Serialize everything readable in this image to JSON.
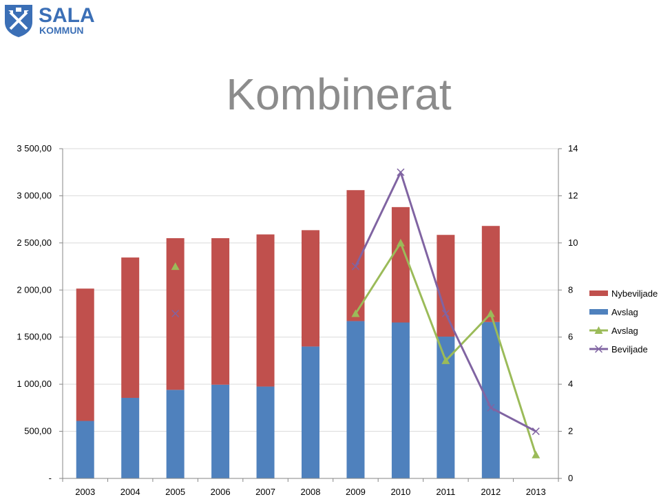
{
  "logo": {
    "line1": "SALA",
    "line2": "KOMMUN",
    "color": "#3b6fb6"
  },
  "chart_data": {
    "type": "bar",
    "title": "Kombinerat",
    "categories": [
      "2003",
      "2004",
      "2005",
      "2006",
      "2007",
      "2008",
      "2009",
      "2010",
      "2011",
      "2012",
      "2013"
    ],
    "left_axis": {
      "ticks": [
        "-",
        "500,00",
        "1 000,00",
        "1 500,00",
        "2 000,00",
        "2 500,00",
        "3 000,00",
        "3 500,00"
      ],
      "ylim": [
        0,
        3500
      ]
    },
    "right_axis": {
      "ticks": [
        "0",
        "2",
        "4",
        "6",
        "8",
        "10",
        "12",
        "14"
      ],
      "ylim": [
        0,
        14
      ]
    },
    "grid": true,
    "legend_position": "right",
    "bar_series": [
      {
        "name": "Avslag",
        "color": "#4f81bd",
        "values": [
          610,
          855,
          940,
          995,
          975,
          1400,
          1670,
          1655,
          1505,
          1660,
          null
        ]
      },
      {
        "name": "Nybeviljade",
        "color": "#c0504d",
        "values": [
          1405,
          1490,
          1610,
          1555,
          1615,
          1235,
          1390,
          1225,
          1080,
          1020,
          null
        ]
      }
    ],
    "line_series": [
      {
        "name": "Avslag",
        "color": "#9bbb59",
        "marker": "triangle",
        "values": [
          null,
          null,
          9,
          null,
          null,
          null,
          7,
          10,
          5,
          7,
          1
        ]
      },
      {
        "name": "Beviljade",
        "color": "#8064a2",
        "marker": "x",
        "values": [
          null,
          null,
          7,
          null,
          null,
          null,
          9,
          13,
          7,
          3,
          2
        ]
      }
    ],
    "legend": [
      "Nybeviljade",
      "Avslag",
      "Avslag",
      "Beviljade"
    ]
  }
}
